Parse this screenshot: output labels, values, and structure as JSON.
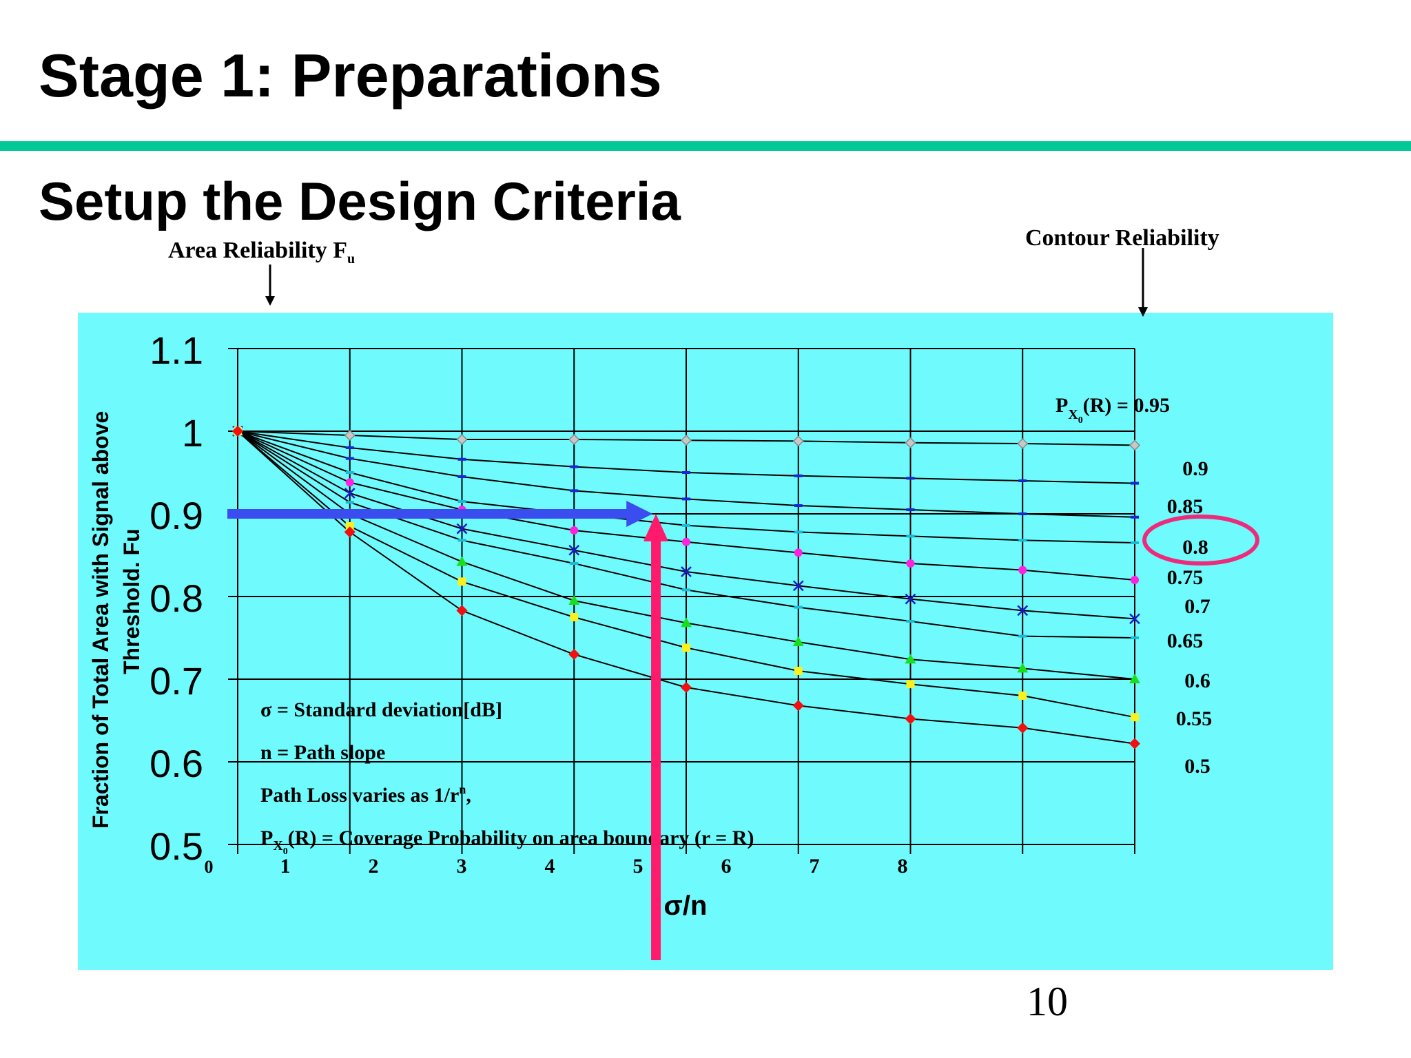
{
  "slide": {
    "title": "Stage 1: Preparations",
    "subtitle": "Setup the Design Criteria",
    "page_number": "10",
    "accent_color": "#00c896",
    "plot_background": "#6ffbfd"
  },
  "annotations": {
    "area_reliability_main": "Area Reliability F",
    "area_reliability_sub": "u",
    "contour_reliability": "Contour Reliability",
    "px0_prefix": "P",
    "px0_sub": "X",
    "px0_subsub": "0",
    "px0_suffix": "(R) = 0.95",
    "legend_line1": "σ = Standard deviation[dB]",
    "legend_line2": "n = Path slope",
    "legend_line3": "Path Loss varies as 1/r",
    "legend_line3_sup": "n",
    "legend_line3_end": ",",
    "legend_line4_p": "P",
    "legend_line4_sub": "X",
    "legend_line4_subsub": "0",
    "legend_line4_rest": "(R) = Coverage Probability on area boundary (r = R)"
  },
  "chart_data": {
    "type": "line",
    "title": "",
    "xlabel": "σ/n",
    "ylabel": "Fraction of Total Area with Signal above Threshold. Fu",
    "xlim": [
      0,
      8
    ],
    "ylim": [
      0.5,
      1.1
    ],
    "x_tick_labels": [
      "0",
      "1",
      "2",
      "3",
      "4",
      "5",
      "6",
      "7",
      "8"
    ],
    "y_tick_labels": [
      "1.1",
      "1",
      "0.9",
      "0.8",
      "0.7",
      "0.6",
      "0.5"
    ],
    "y_tick_values": [
      1.1,
      1.0,
      0.9,
      0.8,
      0.7,
      0.6,
      0.5
    ],
    "grid": true,
    "x": [
      0,
      1,
      2,
      3,
      4,
      5,
      6,
      7,
      8
    ],
    "series": [
      {
        "name": "0.95",
        "marker": "diamond",
        "color": "#c8c8c8",
        "values": [
          1.0,
          0.995,
          0.99,
          0.99,
          0.989,
          0.988,
          0.986,
          0.985,
          0.983
        ]
      },
      {
        "name": "0.9",
        "marker": "dash",
        "color": "#1428d8",
        "values": [
          1.0,
          0.98,
          0.966,
          0.957,
          0.95,
          0.946,
          0.943,
          0.94,
          0.937
        ]
      },
      {
        "name": "0.85",
        "marker": "dash",
        "color": "#1428d8",
        "values": [
          1.0,
          0.967,
          0.945,
          0.928,
          0.918,
          0.91,
          0.905,
          0.9,
          0.896
        ]
      },
      {
        "name": "0.8",
        "marker": "dash",
        "color": "#18bcd8",
        "values": [
          1.0,
          0.95,
          0.915,
          0.9,
          0.886,
          0.878,
          0.873,
          0.868,
          0.865
        ]
      },
      {
        "name": "0.75",
        "marker": "circle",
        "color": "#ff20e0",
        "values": [
          1.0,
          0.938,
          0.905,
          0.88,
          0.866,
          0.853,
          0.84,
          0.832,
          0.82
        ]
      },
      {
        "name": "0.7",
        "marker": "x",
        "color": "#1a1ad0",
        "values": [
          1.0,
          0.925,
          0.882,
          0.856,
          0.83,
          0.813,
          0.797,
          0.783,
          0.773
        ]
      },
      {
        "name": "0.65",
        "marker": "dash",
        "color": "#18bcd8",
        "values": [
          1.0,
          0.914,
          0.868,
          0.84,
          0.808,
          0.787,
          0.77,
          0.752,
          0.75
        ]
      },
      {
        "name": "0.6",
        "marker": "triangle",
        "color": "#18e018",
        "values": [
          1.0,
          0.9,
          0.842,
          0.795,
          0.768,
          0.745,
          0.724,
          0.713,
          0.7
        ]
      },
      {
        "name": "0.55",
        "marker": "square",
        "color": "#f8f020",
        "values": [
          1.0,
          0.885,
          0.818,
          0.775,
          0.738,
          0.71,
          0.694,
          0.68,
          0.654
        ]
      },
      {
        "name": "0.5",
        "marker": "diamond",
        "color": "#f01010",
        "values": [
          1.0,
          0.878,
          0.783,
          0.73,
          0.69,
          0.668,
          0.652,
          0.641,
          0.622
        ]
      }
    ],
    "series_label_texts": [
      "0.9",
      "0.85",
      "0.8",
      "0.75",
      "0.7",
      "0.65",
      "0.6",
      "0.55",
      "0.5"
    ],
    "highlighted_series": "0.8",
    "arrows": [
      {
        "direction": "horizontal",
        "color": "#3a4ef0",
        "y_value": 0.9,
        "to_x": 3.7
      },
      {
        "direction": "vertical",
        "color": "#ff1a6c",
        "x_value": 3.73,
        "to_y": 0.9
      }
    ]
  }
}
